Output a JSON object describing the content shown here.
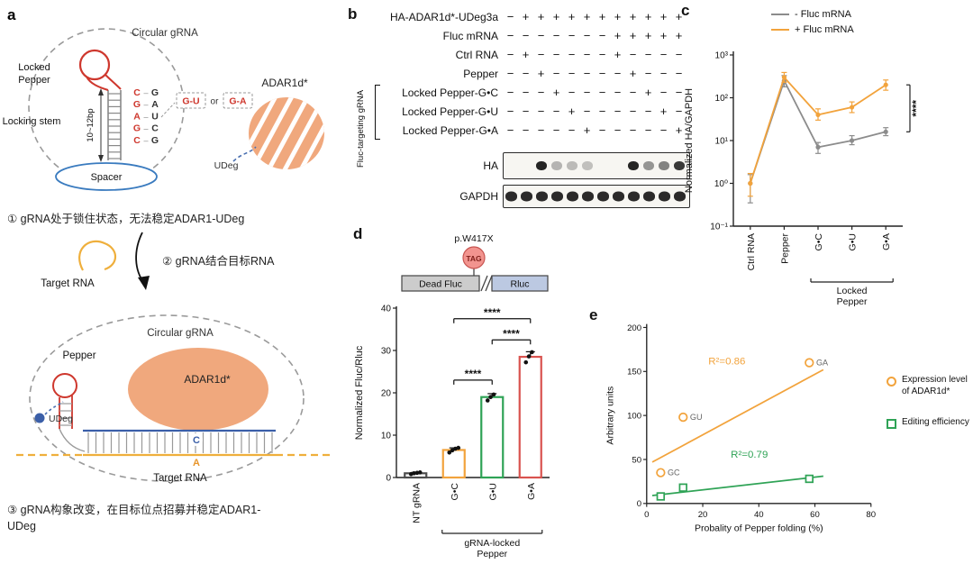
{
  "figure": {
    "panel_labels": {
      "a": "a",
      "b": "b",
      "c": "c",
      "d": "d",
      "e": "e"
    }
  },
  "colors": {
    "orange": "#F2A33C",
    "salmon": "#F0A87D",
    "red": "#CE372D",
    "blue": "#3B5FA8",
    "green": "#2FA356",
    "gray_line": "#8C8C8C",
    "bar_red": "#D9534F"
  },
  "panel_a": {
    "circular_grna": "Circular gRNA",
    "locked_pepper_1": "Locked",
    "locked_pepper_2": "Pepper",
    "locking_stem": "Locking stem",
    "stem_length": "10~12bp",
    "spacer": "Spacer",
    "adar": "ADAR1d*",
    "udeg": "UDeg",
    "pairs": [
      {
        "l": "C",
        "r": "G"
      },
      {
        "l": "G",
        "r": "A"
      },
      {
        "l": "A",
        "r": "U"
      },
      {
        "l": "G",
        "r": "C"
      },
      {
        "l": "C",
        "r": "G"
      }
    ],
    "wobble_box_1": "G-U",
    "or_text": "or",
    "wobble_box_2": "G-A",
    "step1": "① gRNA处于锁住状态，无法稳定ADAR1-UDeg",
    "step2": "② gRNA结合目标RNA",
    "target_rna": "Target RNA",
    "circular_grna_2": "Circular gRNA",
    "pepper": "Pepper",
    "udeg_2": "UDeg",
    "adar_2": "ADAR1d*",
    "base_c": "C",
    "base_a": "A",
    "target_rna_2": "Target RNA",
    "step3_line1": "③ gRNA构象改变，在目标位点招募并稳定ADAR1-",
    "step3_line2": "UDeg"
  },
  "panel_b": {
    "conditions": [
      {
        "name": "HA-ADAR1d*-UDeg3a",
        "signs": [
          "−",
          "+",
          "+",
          "+",
          "+",
          "+",
          "+",
          "+",
          "+",
          "+",
          "+",
          "+"
        ]
      },
      {
        "name": "Fluc mRNA",
        "signs": [
          "−",
          "−",
          "−",
          "−",
          "−",
          "−",
          "−",
          "+",
          "+",
          "+",
          "+",
          "+"
        ]
      },
      {
        "name": "Ctrl RNA",
        "signs": [
          "−",
          "+",
          "−",
          "−",
          "−",
          "−",
          "−",
          "+",
          "−",
          "−",
          "−",
          "−"
        ]
      },
      {
        "name": "Pepper",
        "signs": [
          "−",
          "−",
          "+",
          "−",
          "−",
          "−",
          "−",
          "−",
          "+",
          "−",
          "−",
          "−"
        ]
      },
      {
        "name": "Locked Pepper-G•C",
        "signs": [
          "−",
          "−",
          "−",
          "+",
          "−",
          "−",
          "−",
          "−",
          "−",
          "+",
          "−",
          "−"
        ]
      },
      {
        "name": "Locked Pepper-G•U",
        "signs": [
          "−",
          "−",
          "−",
          "−",
          "+",
          "−",
          "−",
          "−",
          "−",
          "−",
          "+",
          "−"
        ]
      },
      {
        "name": "Locked Pepper-G•A",
        "signs": [
          "−",
          "−",
          "−",
          "−",
          "−",
          "+",
          "−",
          "−",
          "−",
          "−",
          "−",
          "+"
        ]
      }
    ],
    "bracket_label": "Fluc-targeting gRNA",
    "blots": [
      {
        "name": "HA",
        "bands": [
          0,
          0,
          0.92,
          0.14,
          0.1,
          0.07,
          0,
          0,
          0.92,
          0.3,
          0.4,
          0.8
        ]
      },
      {
        "name": "GAPDH",
        "bands": [
          0.88,
          0.88,
          0.88,
          0.88,
          0.88,
          0.88,
          0.88,
          0.88,
          0.88,
          0.88,
          0.88,
          0.88
        ]
      }
    ]
  },
  "chart_data": [
    {
      "panel": "c",
      "type": "line",
      "categories": [
        "Ctrl RNA",
        "Pepper",
        "G•C",
        "G•U",
        "G•A"
      ],
      "series": [
        {
          "name": "- Fluc mRNA",
          "color": "#8C8C8C",
          "values": [
            1,
            250,
            7,
            10,
            16
          ],
          "err_lo": [
            0.35,
            180,
            5,
            8,
            13
          ],
          "err_hi": [
            1.6,
            330,
            9,
            13,
            20
          ]
        },
        {
          "name": "+ Fluc mRNA",
          "color": "#F2A33C",
          "values": [
            1,
            300,
            40,
            60,
            200
          ],
          "err_lo": [
            0.5,
            230,
            30,
            45,
            150
          ],
          "err_hi": [
            1.7,
            390,
            55,
            80,
            260
          ]
        }
      ],
      "ylabel": "Normalized HA/GAPDH",
      "yscale": "log",
      "ylim": [
        0.1,
        1000
      ],
      "ytick_labels": [
        "10⁻¹",
        "10⁰",
        "10¹",
        "10²",
        "10³"
      ],
      "group_bracket": {
        "from": 2,
        "to": 4,
        "label_lines": [
          "Locked",
          "Pepper"
        ]
      },
      "significance": {
        "label": "****",
        "series_a": 0,
        "series_b": 1,
        "at_category": 4
      }
    },
    {
      "panel": "d",
      "type": "bar",
      "categories": [
        "NT gRNA",
        "G•C",
        "G•U",
        "G•A"
      ],
      "values": [
        1,
        6.5,
        19,
        28.5
      ],
      "errors": [
        0.2,
        0.5,
        0.8,
        1.2
      ],
      "bar_colors": [
        "#4D4D4D",
        "#F2A33C",
        "#2FA356",
        "#D9534F"
      ],
      "points": [
        [
          0.8,
          1.0,
          1.1,
          1.2
        ],
        [
          5.9,
          6.4,
          6.8,
          7.0
        ],
        [
          18.2,
          19.0,
          19.6
        ],
        [
          27.2,
          28.6,
          29.6
        ]
      ],
      "ylabel": "Normalized Fluc/Rluc",
      "ylim": [
        0,
        40
      ],
      "yticks": [
        0,
        10,
        20,
        30,
        40
      ],
      "group_bracket": {
        "from": 1,
        "to": 3,
        "label_lines": [
          "gRNA-locked",
          "Pepper"
        ]
      },
      "significance": [
        {
          "from": 1,
          "to": 2,
          "y": 23,
          "label": "****"
        },
        {
          "from": 2,
          "to": 3,
          "y": 32.5,
          "label": "****"
        },
        {
          "from": 1,
          "to": 3,
          "y": 37.5,
          "label": "****"
        }
      ],
      "construct": {
        "mutation": "p.W417X",
        "codon": "TAG",
        "box1": "Dead Fluc",
        "box2": "Rluc"
      }
    },
    {
      "panel": "e",
      "type": "scatter",
      "xlabel": "Probality of Pepper folding (%)",
      "ylabel": "Arbitrary units",
      "xlim": [
        0,
        80
      ],
      "ylim": [
        0,
        200
      ],
      "xticks": [
        0,
        20,
        40,
        60,
        80
      ],
      "yticks": [
        0,
        50,
        100,
        150,
        200
      ],
      "series": [
        {
          "name": "Expression level of ADAR1d*",
          "marker": "circle",
          "color": "#F2A33C",
          "r2_label": "R²=0.86",
          "points": [
            {
              "x": 5,
              "y": 35,
              "label": "GC"
            },
            {
              "x": 13,
              "y": 98,
              "label": "GU"
            },
            {
              "x": 58,
              "y": 160,
              "label": "GA"
            }
          ],
          "fit_line": {
            "x1": 2,
            "y1": 47,
            "x2": 63,
            "y2": 152
          },
          "r2_pos": {
            "x": 22,
            "y": 158
          }
        },
        {
          "name": "Editing efficiency",
          "marker": "square",
          "color": "#2FA356",
          "r2_label": "R²=0.79",
          "points": [
            {
              "x": 5,
              "y": 8
            },
            {
              "x": 13,
              "y": 18
            },
            {
              "x": 58,
              "y": 28
            }
          ],
          "fit_line": {
            "x1": 2,
            "y1": 9,
            "x2": 63,
            "y2": 31
          },
          "r2_pos": {
            "x": 30,
            "y": 52
          }
        }
      ]
    }
  ]
}
